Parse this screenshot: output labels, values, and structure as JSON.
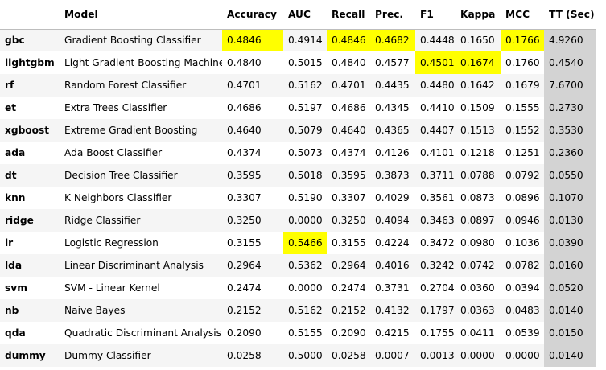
{
  "table": {
    "columns": [
      "",
      "Model",
      "Accuracy",
      "AUC",
      "Recall",
      "Prec.",
      "F1",
      "Kappa",
      "MCC",
      "TT (Sec)"
    ],
    "rows": [
      {
        "id": "gbc",
        "cells": [
          "Gradient Boosting Classifier",
          "0.4846",
          "0.4914",
          "0.4846",
          "0.4682",
          "0.4448",
          "0.1650",
          "0.1766",
          "4.9260"
        ]
      },
      {
        "id": "lightgbm",
        "cells": [
          "Light Gradient Boosting Machine",
          "0.4840",
          "0.5015",
          "0.4840",
          "0.4577",
          "0.4501",
          "0.1674",
          "0.1760",
          "0.4540"
        ]
      },
      {
        "id": "rf",
        "cells": [
          "Random Forest Classifier",
          "0.4701",
          "0.5162",
          "0.4701",
          "0.4435",
          "0.4480",
          "0.1642",
          "0.1679",
          "7.6700"
        ]
      },
      {
        "id": "et",
        "cells": [
          "Extra Trees Classifier",
          "0.4686",
          "0.5197",
          "0.4686",
          "0.4345",
          "0.4410",
          "0.1509",
          "0.1555",
          "0.2730"
        ]
      },
      {
        "id": "xgboost",
        "cells": [
          "Extreme Gradient Boosting",
          "0.4640",
          "0.5079",
          "0.4640",
          "0.4365",
          "0.4407",
          "0.1513",
          "0.1552",
          "0.3530"
        ]
      },
      {
        "id": "ada",
        "cells": [
          "Ada Boost Classifier",
          "0.4374",
          "0.5073",
          "0.4374",
          "0.4126",
          "0.4101",
          "0.1218",
          "0.1251",
          "0.2360"
        ]
      },
      {
        "id": "dt",
        "cells": [
          "Decision Tree Classifier",
          "0.3595",
          "0.5018",
          "0.3595",
          "0.3873",
          "0.3711",
          "0.0788",
          "0.0792",
          "0.0550"
        ]
      },
      {
        "id": "knn",
        "cells": [
          "K Neighbors Classifier",
          "0.3307",
          "0.5190",
          "0.3307",
          "0.4029",
          "0.3561",
          "0.0873",
          "0.0896",
          "0.1070"
        ]
      },
      {
        "id": "ridge",
        "cells": [
          "Ridge Classifier",
          "0.3250",
          "0.0000",
          "0.3250",
          "0.4094",
          "0.3463",
          "0.0897",
          "0.0946",
          "0.0130"
        ]
      },
      {
        "id": "lr",
        "cells": [
          "Logistic Regression",
          "0.3155",
          "0.5466",
          "0.3155",
          "0.4224",
          "0.3472",
          "0.0980",
          "0.1036",
          "0.0390"
        ]
      },
      {
        "id": "lda",
        "cells": [
          "Linear Discriminant Analysis",
          "0.2964",
          "0.5362",
          "0.2964",
          "0.4016",
          "0.3242",
          "0.0742",
          "0.0782",
          "0.0160"
        ]
      },
      {
        "id": "svm",
        "cells": [
          "SVM - Linear Kernel",
          "0.2474",
          "0.0000",
          "0.2474",
          "0.3731",
          "0.2704",
          "0.0360",
          "0.0394",
          "0.0520"
        ]
      },
      {
        "id": "nb",
        "cells": [
          "Naive Bayes",
          "0.2152",
          "0.5162",
          "0.2152",
          "0.4132",
          "0.1797",
          "0.0363",
          "0.0483",
          "0.0140"
        ]
      },
      {
        "id": "qda",
        "cells": [
          "Quadratic Discriminant Analysis",
          "0.2090",
          "0.5155",
          "0.2090",
          "0.4215",
          "0.1755",
          "0.0411",
          "0.0539",
          "0.0150"
        ]
      },
      {
        "id": "dummy",
        "cells": [
          "Dummy Classifier",
          "0.0258",
          "0.5000",
          "0.0258",
          "0.0007",
          "0.0013",
          "0.0000",
          "0.0000",
          "0.0140"
        ]
      }
    ],
    "highlights": [
      {
        "row": "gbc",
        "column": "Accuracy"
      },
      {
        "row": "gbc",
        "column": "Recall"
      },
      {
        "row": "gbc",
        "column": "Prec."
      },
      {
        "row": "gbc",
        "column": "MCC"
      },
      {
        "row": "lightgbm",
        "column": "F1"
      },
      {
        "row": "lightgbm",
        "column": "Kappa"
      },
      {
        "row": "lr",
        "column": "AUC"
      }
    ]
  },
  "colors": {
    "highlight": "#ffff00",
    "tt_column": "#d3d3d3",
    "row_stripe": "#f5f5f5",
    "background": "#ffffff"
  }
}
